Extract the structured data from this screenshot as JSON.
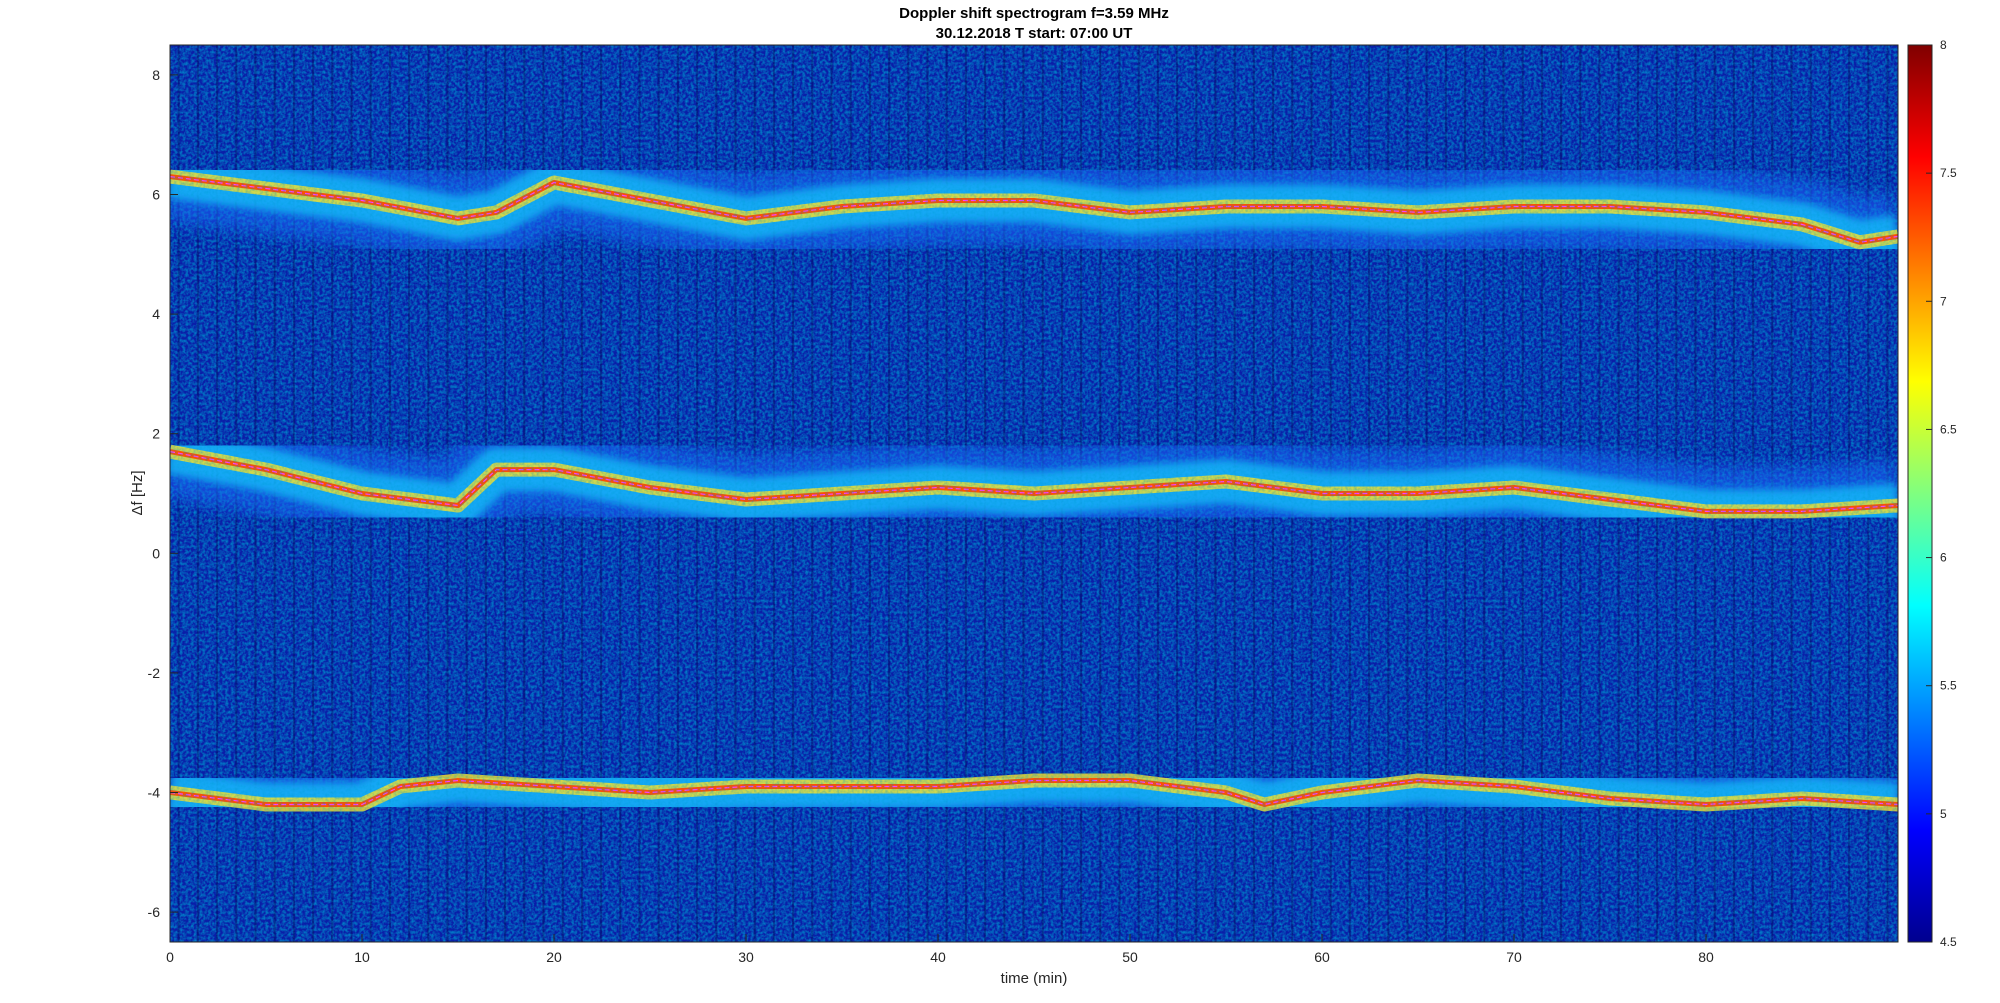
{
  "chart_data": {
    "type": "heatmap",
    "title": "Doppler shift spectrogram f=3.59 MHz",
    "subtitle": "30.12.2018    T start: 07:00 UT",
    "xlabel": "time (min)",
    "ylabel": "Δf [Hz]",
    "xlim": [
      0,
      90
    ],
    "ylim": [
      -6.5,
      8.5
    ],
    "x_ticks": [
      "0",
      "10",
      "20",
      "30",
      "40",
      "50",
      "60",
      "70",
      "80"
    ],
    "y_ticks": [
      "-6",
      "-4",
      "-2",
      "0",
      "2",
      "4",
      "6",
      "8"
    ],
    "colorbar": {
      "colormap": "jet",
      "range": [
        4.5,
        8
      ],
      "ticks": [
        "4.5",
        "5",
        "5.5",
        "6",
        "6.5",
        "7",
        "7.5",
        "8"
      ]
    },
    "series": [
      {
        "x": [
          0,
          5,
          10,
          15,
          17,
          20,
          25,
          30,
          35,
          40,
          45,
          50,
          55,
          60,
          65,
          70,
          75,
          80,
          85,
          88,
          90
        ],
        "y": [
          6.3,
          6.1,
          5.9,
          5.6,
          5.7,
          6.2,
          5.9,
          5.6,
          5.8,
          5.9,
          5.9,
          5.7,
          5.8,
          5.8,
          5.7,
          5.8,
          5.8,
          5.7,
          5.5,
          5.2,
          5.3
        ]
      },
      {
        "x": [
          0,
          5,
          10,
          15,
          17,
          20,
          25,
          30,
          35,
          40,
          45,
          50,
          55,
          60,
          65,
          70,
          75,
          80,
          85,
          90
        ],
        "y": [
          1.7,
          1.4,
          1.0,
          0.8,
          1.4,
          1.4,
          1.1,
          0.9,
          1.0,
          1.1,
          1.0,
          1.1,
          1.2,
          1.0,
          1.0,
          1.1,
          0.9,
          0.7,
          0.7,
          0.8
        ]
      },
      {
        "x": [
          0,
          5,
          10,
          12,
          15,
          20,
          25,
          30,
          35,
          40,
          45,
          50,
          55,
          57,
          60,
          65,
          70,
          75,
          80,
          85,
          90
        ],
        "y": [
          -4.0,
          -4.2,
          -4.2,
          -3.9,
          -3.8,
          -3.9,
          -4.0,
          -3.9,
          -3.9,
          -3.9,
          -3.8,
          -3.8,
          -4.0,
          -4.2,
          -4.0,
          -3.8,
          -3.9,
          -4.1,
          -4.2,
          -4.1,
          -4.2
        ]
      }
    ]
  }
}
